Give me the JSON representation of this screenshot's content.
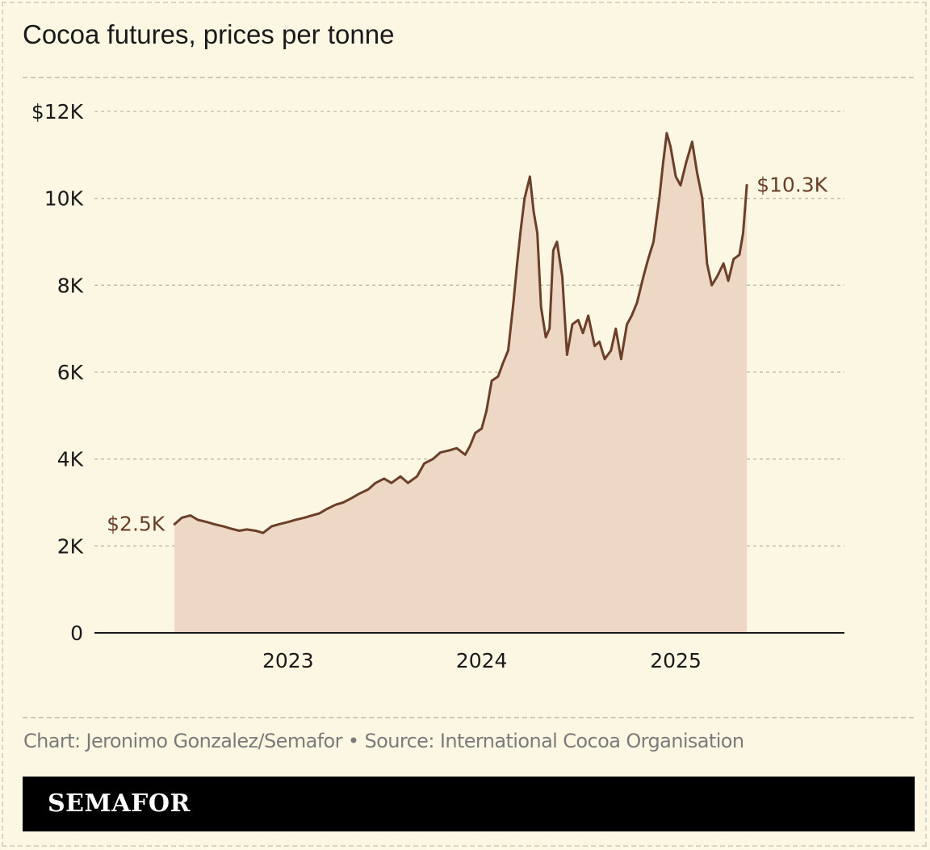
{
  "title": "Cocoa futures, prices per tonne",
  "credit": "Chart: Jeronimo Gonzalez/Semafor • Source: International Cocoa Organisation",
  "brand": "SEMAFOR",
  "colors": {
    "line": "#6b3f2a",
    "area": "#ecd8c4",
    "background": "#fbf7e3",
    "grid": "#bdb8a8",
    "axis": "#1a1a1a"
  },
  "chart_data": {
    "type": "area",
    "title": "Cocoa futures, prices per tonne",
    "xlabel": "",
    "ylabel": "",
    "xlim": [
      "2022-01-01",
      "2025-11-15"
    ],
    "ylim": [
      0,
      12000
    ],
    "grid": true,
    "y_ticks": [
      {
        "value": 0,
        "label": "0"
      },
      {
        "value": 2000,
        "label": "2K"
      },
      {
        "value": 4000,
        "label": "4K"
      },
      {
        "value": 6000,
        "label": "6K"
      },
      {
        "value": 8000,
        "label": "8K"
      },
      {
        "value": 10000,
        "label": "10K"
      },
      {
        "value": 12000,
        "label": "$12K"
      }
    ],
    "x_ticks": [
      {
        "value": "2023-01-01",
        "label": "2023"
      },
      {
        "value": "2024-01-01",
        "label": "2024"
      },
      {
        "value": "2025-01-01",
        "label": "2025"
      }
    ],
    "annotations": [
      {
        "label": "$2.5K",
        "x": "2022-06-01",
        "y": 2500
      },
      {
        "label": "$10.3K",
        "x": "2025-05-15",
        "y": 10300
      }
    ],
    "series": [
      {
        "x": [
          "2022-06-01",
          "2022-06-15",
          "2022-07-01",
          "2022-07-15",
          "2022-08-01",
          "2022-08-15",
          "2022-09-01",
          "2022-09-15",
          "2022-10-01",
          "2022-10-15",
          "2022-11-01",
          "2022-11-15",
          "2022-12-01",
          "2022-12-15",
          "2023-01-01",
          "2023-01-15",
          "2023-02-01",
          "2023-02-15",
          "2023-03-01",
          "2023-03-15",
          "2023-04-01",
          "2023-04-15",
          "2023-05-01",
          "2023-05-15",
          "2023-06-01",
          "2023-06-15",
          "2023-07-01",
          "2023-07-15",
          "2023-08-01",
          "2023-08-15",
          "2023-09-01",
          "2023-09-15",
          "2023-10-01",
          "2023-10-15",
          "2023-11-01",
          "2023-11-15",
          "2023-12-01",
          "2023-12-10",
          "2023-12-20",
          "2024-01-01",
          "2024-01-10",
          "2024-01-20",
          "2024-02-01",
          "2024-02-10",
          "2024-02-20",
          "2024-03-01",
          "2024-03-08",
          "2024-03-15",
          "2024-03-22",
          "2024-04-01",
          "2024-04-08",
          "2024-04-15",
          "2024-04-22",
          "2024-05-01",
          "2024-05-08",
          "2024-05-15",
          "2024-05-22",
          "2024-06-01",
          "2024-06-10",
          "2024-06-20",
          "2024-07-01",
          "2024-07-10",
          "2024-07-20",
          "2024-08-01",
          "2024-08-10",
          "2024-08-20",
          "2024-09-01",
          "2024-09-10",
          "2024-09-20",
          "2024-10-01",
          "2024-10-10",
          "2024-10-20",
          "2024-11-01",
          "2024-11-10",
          "2024-11-20",
          "2024-12-01",
          "2024-12-08",
          "2024-12-15",
          "2024-12-22",
          "2025-01-01",
          "2025-01-10",
          "2025-01-20",
          "2025-02-01",
          "2025-02-10",
          "2025-02-20",
          "2025-03-01",
          "2025-03-10",
          "2025-03-20",
          "2025-04-01",
          "2025-04-10",
          "2025-04-20",
          "2025-05-01",
          "2025-05-08",
          "2025-05-15"
        ],
        "values": [
          2500,
          2650,
          2700,
          2600,
          2550,
          2500,
          2450,
          2400,
          2350,
          2380,
          2350,
          2300,
          2450,
          2500,
          2550,
          2600,
          2650,
          2700,
          2750,
          2850,
          2950,
          3000,
          3100,
          3200,
          3300,
          3450,
          3550,
          3450,
          3600,
          3450,
          3600,
          3900,
          4000,
          4150,
          4200,
          4250,
          4100,
          4300,
          4600,
          4700,
          5100,
          5800,
          5900,
          6200,
          6500,
          7600,
          8500,
          9300,
          10000,
          10500,
          9700,
          9200,
          7500,
          6800,
          7000,
          8800,
          9000,
          8200,
          6400,
          7100,
          7200,
          6900,
          7300,
          6600,
          6700,
          6300,
          6500,
          7000,
          6300,
          7100,
          7300,
          7600,
          8200,
          8600,
          9000,
          10000,
          10800,
          11500,
          11200,
          10500,
          10300,
          10800,
          11300,
          10600,
          10000,
          8500,
          8000,
          8200,
          8500,
          8100,
          8600,
          8700,
          9200,
          10300
        ]
      }
    ]
  }
}
